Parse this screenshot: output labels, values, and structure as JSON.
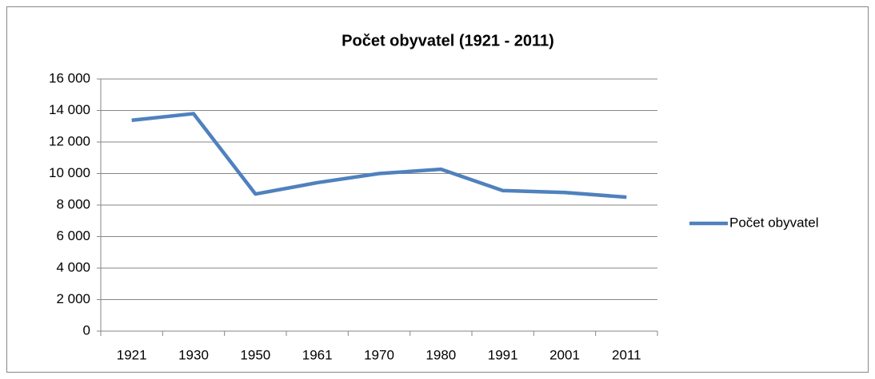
{
  "chart_data": {
    "type": "line",
    "title": "Počet obyvatel (1921 - 2011)",
    "categories": [
      "1921",
      "1930",
      "1950",
      "1961",
      "1970",
      "1980",
      "1991",
      "2001",
      "2011"
    ],
    "series": [
      {
        "name": "Počet obyvatel",
        "color": "#4f81bd",
        "values": [
          13380,
          13800,
          8700,
          9420,
          10000,
          10270,
          8920,
          8800,
          8500
        ]
      }
    ],
    "ylim": [
      0,
      16000
    ],
    "yticks": [
      0,
      {
        "value": 2000,
        "label": "2 000"
      },
      {
        "value": 4000,
        "label": "4 000"
      },
      {
        "value": 6000,
        "label": "6 000"
      },
      {
        "value": 8000,
        "label": "8 000"
      },
      {
        "value": 10000,
        "label": "10 000"
      },
      {
        "value": 12000,
        "label": "12 000"
      },
      {
        "value": 14000,
        "label": "14 000"
      },
      {
        "value": 16000,
        "label": "16 000"
      }
    ],
    "grid": true,
    "legend": "right"
  }
}
